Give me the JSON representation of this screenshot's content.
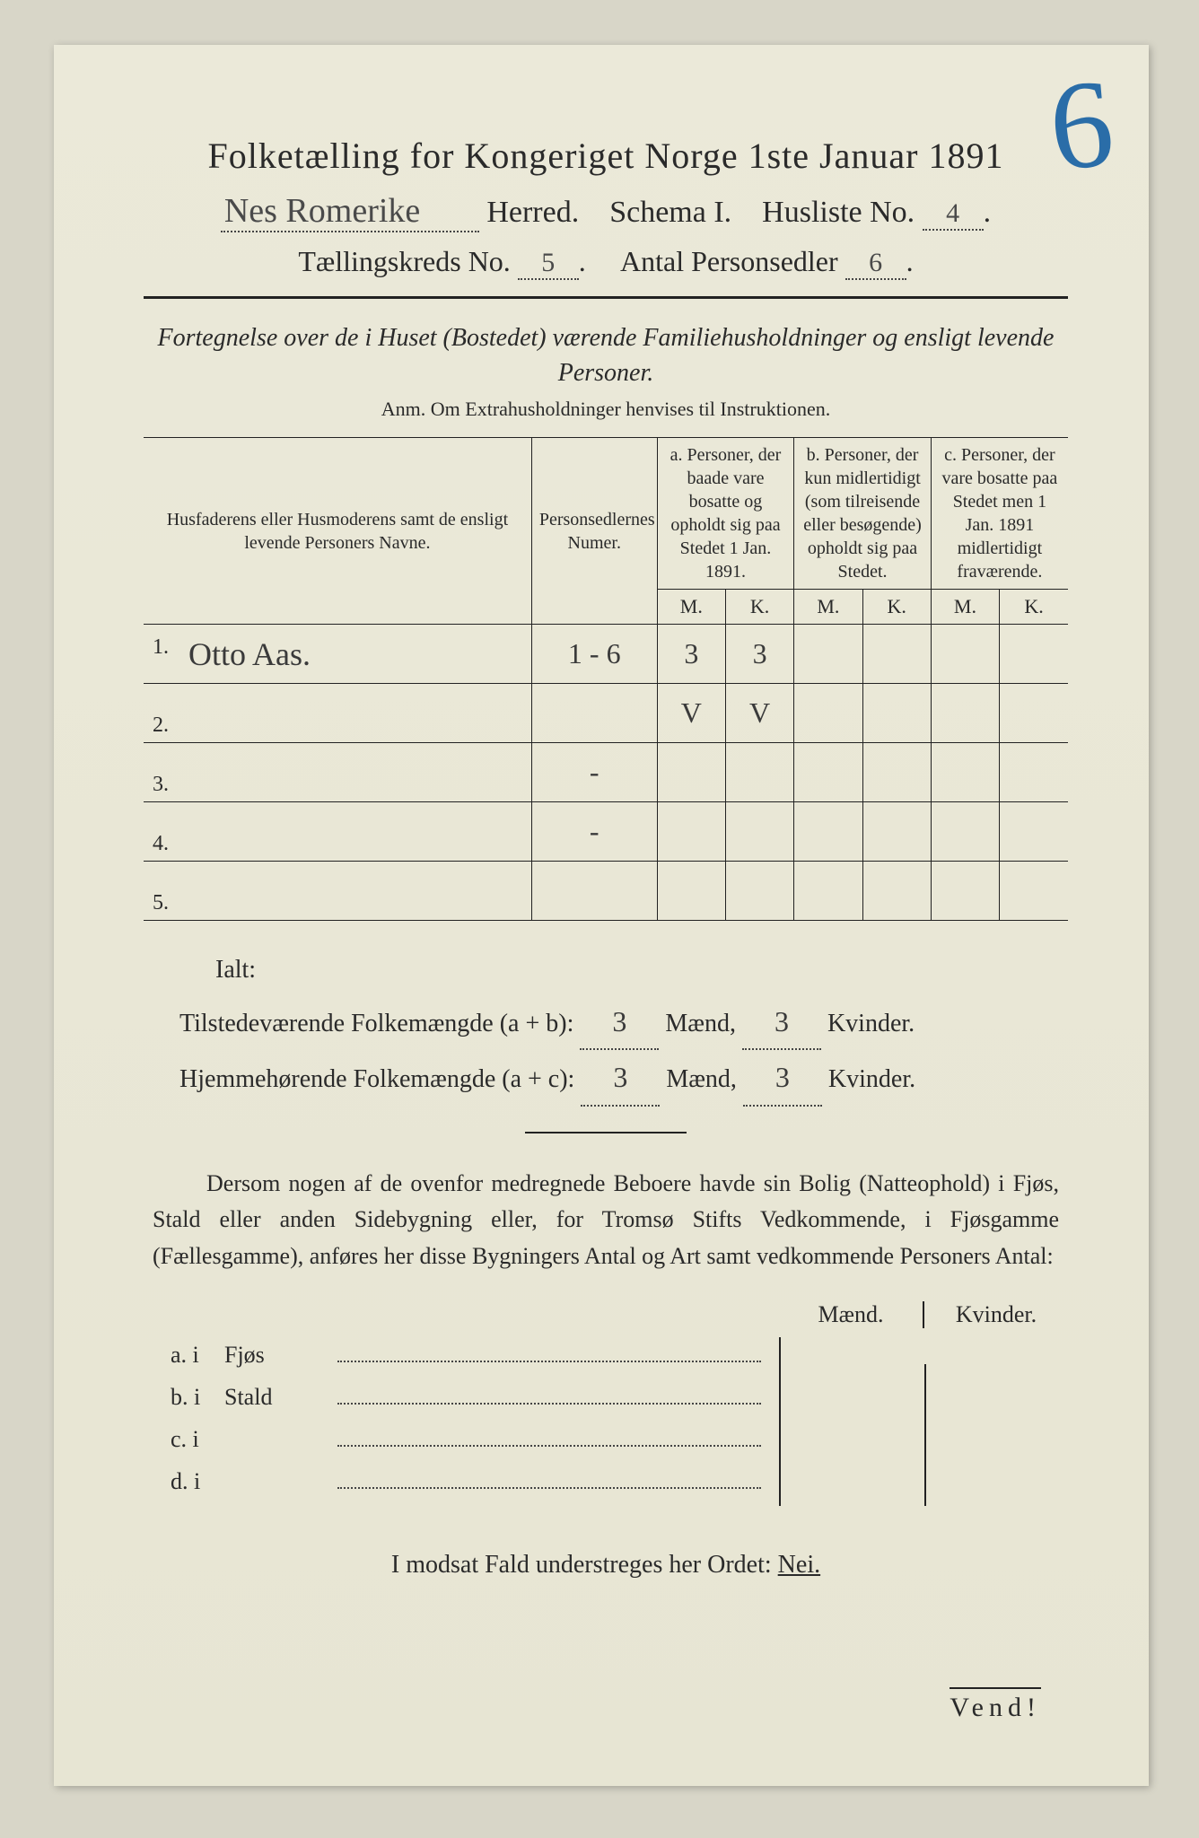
{
  "corner_mark": "6",
  "title": "Folketælling for Kongeriget Norge 1ste Januar 1891",
  "herred_name": "Nes Romerike",
  "herred_label": "Herred.",
  "schema_label": "Schema I.",
  "husliste_label": "Husliste No.",
  "husliste_no": "4",
  "kreds_label": "Tællingskreds No.",
  "kreds_no": "5",
  "personsedler_label": "Antal Personsedler",
  "personsedler_no": "6",
  "intro": "Fortegnelse over de i Huset (Bostedet) værende Familiehusholdninger og ensligt levende Personer.",
  "anm": "Anm. Om Extrahusholdninger henvises til Instruktionen.",
  "table": {
    "col_names": "Husfaderens eller Husmoderens samt de ensligt levende Personers Navne.",
    "col_nummer": "Personsedlernes Numer.",
    "col_a": "a.\nPersoner, der baade vare bosatte og opholdt sig paa Stedet 1 Jan. 1891.",
    "col_b": "b.\nPersoner, der kun midlertidigt (som tilreisende eller besøgende) opholdt sig paa Stedet.",
    "col_c": "c.\nPersoner, der vare bosatte paa Stedet men 1 Jan. 1891 midlertidigt fraværende.",
    "mk_m": "M.",
    "mk_k": "K.",
    "rows": [
      {
        "n": "1.",
        "name": "Otto Aas.",
        "numer": "1 - 6",
        "a_m": "3",
        "a_k": "3",
        "b_m": "",
        "b_k": "",
        "c_m": "",
        "c_k": ""
      },
      {
        "n": "2.",
        "name": "",
        "numer": "",
        "a_m": "V",
        "a_k": "V",
        "b_m": "",
        "b_k": "",
        "c_m": "",
        "c_k": ""
      },
      {
        "n": "3.",
        "name": "",
        "numer": "-",
        "a_m": "",
        "a_k": "",
        "b_m": "",
        "b_k": "",
        "c_m": "",
        "c_k": ""
      },
      {
        "n": "4.",
        "name": "",
        "numer": "-",
        "a_m": "",
        "a_k": "",
        "b_m": "",
        "b_k": "",
        "c_m": "",
        "c_k": ""
      },
      {
        "n": "5.",
        "name": "",
        "numer": "",
        "a_m": "",
        "a_k": "",
        "b_m": "",
        "b_k": "",
        "c_m": "",
        "c_k": ""
      }
    ]
  },
  "ialt": {
    "label": "Ialt:",
    "line1_label": "Tilstedeværende Folkemængde (a + b):",
    "line2_label": "Hjemmehørende Folkemængde (a + c):",
    "maend_label": "Mænd,",
    "kvinder_label": "Kvinder.",
    "ab_m": "3",
    "ab_k": "3",
    "ac_m": "3",
    "ac_k": "3"
  },
  "para": "Dersom nogen af de ovenfor medregnede Beboere havde sin Bolig (Natteophold) i Fjøs, Stald eller anden Sidebygning eller, for Tromsø Stifts Vedkommende, i Fjøsgamme (Fællesgamme), anføres her disse Bygningers Antal og Art samt vedkommende Personers Antal:",
  "buildings": {
    "head_m": "Mænd.",
    "head_k": "Kvinder.",
    "rows": [
      {
        "lbl": "a.  i",
        "kind": "Fjøs"
      },
      {
        "lbl": "b.  i",
        "kind": "Stald"
      },
      {
        "lbl": "c.  i",
        "kind": ""
      },
      {
        "lbl": "d.  i",
        "kind": ""
      }
    ]
  },
  "final": {
    "text_before": "I modsat Fald understreges her Ordet: ",
    "nei": "Nei."
  },
  "vend": "Vend!"
}
